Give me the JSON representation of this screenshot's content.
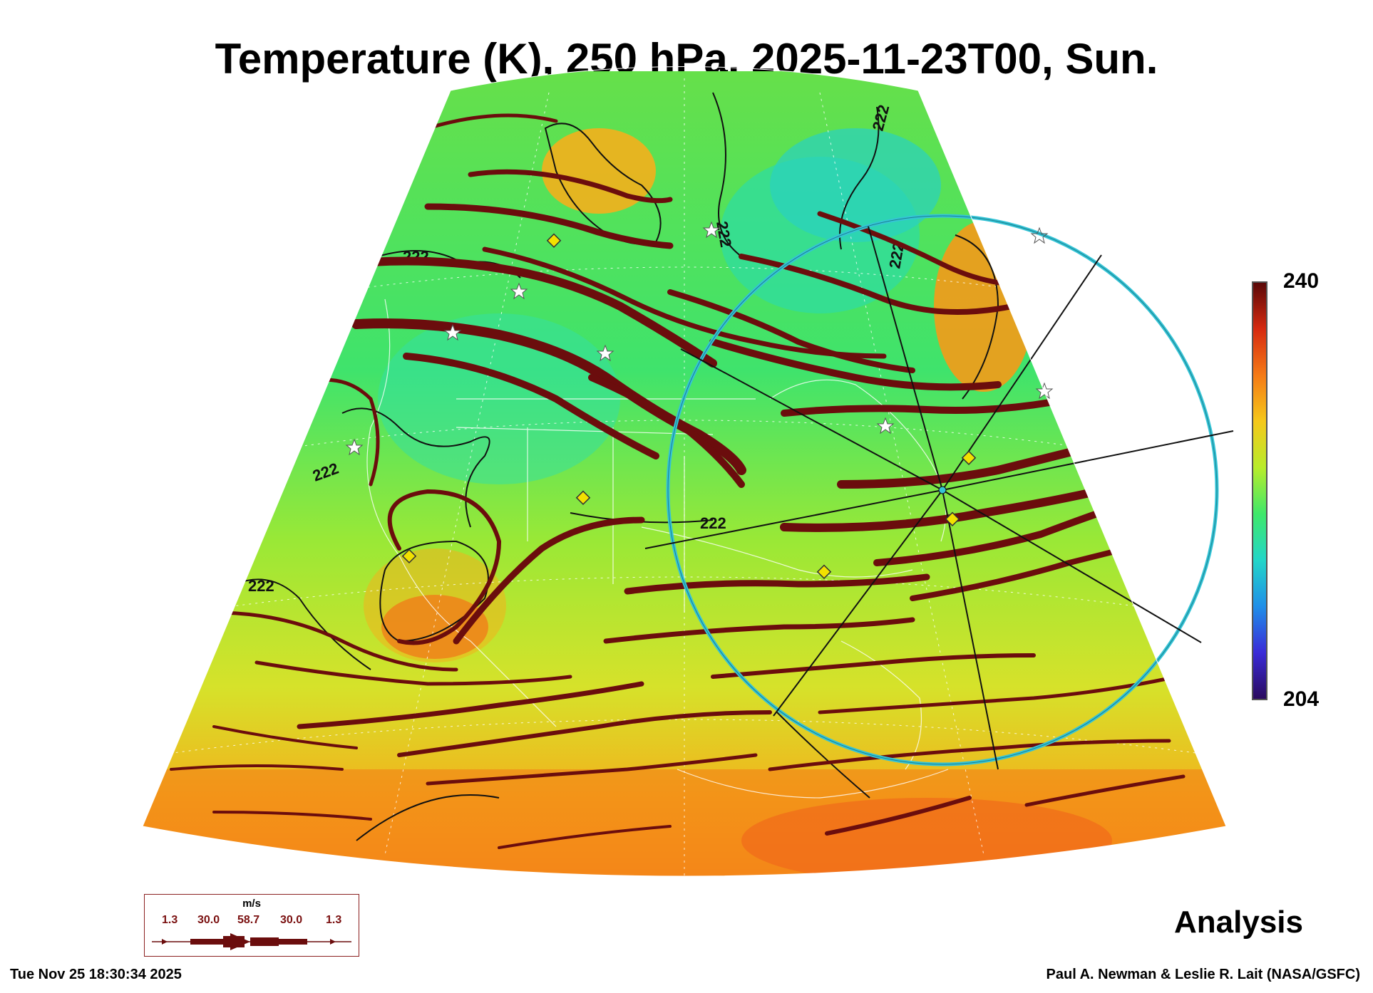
{
  "title": "Temperature (K), 250 hPa, 2025-11-23T00, Sun.",
  "colorbar": {
    "max": "240",
    "min": "204"
  },
  "contour_labels": {
    "value": "222"
  },
  "legend": {
    "unit": "m/s",
    "values": [
      "1.3",
      "30.0",
      "58.7",
      "30.0",
      "1.3"
    ]
  },
  "product_label": "Analysis",
  "timestamp": "Tue Nov 25 18:30:34 2025",
  "credit": "Paul A. Newman & Leslie R. Lait (NASA/GSFC)",
  "colors": {
    "streamline": "#6b0d0d",
    "circle": "#35c4d6",
    "marker_diamond": "#f2e100",
    "colorbar_stops": [
      "#2a0a5e",
      "#3a2bd8",
      "#1f8fe8",
      "#22d6c8",
      "#3fe86a",
      "#b8ec2a",
      "#f5c81a",
      "#f57a16",
      "#d62a10",
      "#5a0808"
    ]
  }
}
